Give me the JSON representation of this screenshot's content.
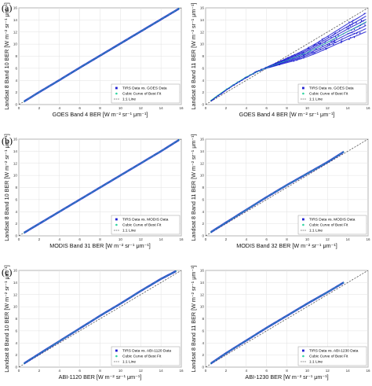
{
  "panel_labels": [
    "(a)",
    "(b)",
    "(c)"
  ],
  "legend_common": {
    "best_fit": "Cubic Curve of Best Fit",
    "one_to_one": "1:1 Line"
  },
  "colors": {
    "data": "#1f1fd1",
    "best_fit": "#2fd3a0",
    "one_to_one": "#555555"
  },
  "chart_data": [
    {
      "type": "scatter",
      "panel": "(a)",
      "xlabel": "GOES Band 4 BER [W m⁻² sr⁻¹ μm⁻¹]",
      "ylabel": "Landsat 8 Band 10 BER [W m⁻² sr⁻¹ μm⁻¹]",
      "xlim": [
        0,
        16
      ],
      "ylim": [
        0,
        16
      ],
      "grid": true,
      "legend_position": "bottom-right",
      "series": [
        {
          "name": "TIRS Data vs. GOES Data",
          "x": [
            0.5,
            2,
            4,
            6,
            8,
            10,
            12,
            14,
            15.8
          ],
          "y": [
            0.5,
            2.05,
            4.05,
            6.1,
            8.1,
            10.1,
            12.1,
            14.1,
            15.9
          ]
        },
        {
          "name": "Cubic Curve of Best Fit",
          "x": [
            0.5,
            2,
            4,
            6,
            8,
            10,
            12,
            14,
            15.8
          ],
          "y": [
            0.5,
            2.05,
            4.05,
            6.1,
            8.1,
            10.1,
            12.1,
            14.1,
            15.9
          ]
        },
        {
          "name": "1:1 Line",
          "x": [
            0,
            16
          ],
          "y": [
            0,
            16
          ]
        }
      ]
    },
    {
      "type": "scatter",
      "panel": "(a)",
      "xlabel": "GOES Band 4 BER [W m⁻² sr⁻¹ μm⁻¹]",
      "ylabel": "Landsat 8 Band 11 BER [W m⁻² sr⁻¹ μm⁻¹]",
      "xlim": [
        0,
        16
      ],
      "ylim": [
        0,
        16
      ],
      "grid": true,
      "legend_position": "bottom-right",
      "series": [
        {
          "name": "TIRS Data vs. GOES Data",
          "x": [
            0.5,
            1,
            2,
            3,
            4,
            5,
            6,
            7,
            8,
            9,
            10,
            11,
            12,
            13,
            14,
            15,
            15.8
          ],
          "y": [
            0.6,
            1.2,
            2.4,
            3.5,
            4.5,
            5.4,
            6.1,
            6.7,
            7.3,
            7.9,
            8.6,
            9.4,
            10.3,
            11.2,
            12.1,
            12.9,
            13.6
          ]
        },
        {
          "name": "Cubic Curve of Best Fit",
          "x": [
            0.5,
            2,
            4,
            6,
            8,
            10,
            12,
            14,
            15.8
          ],
          "y": [
            0.7,
            2.5,
            4.6,
            6.1,
            7.3,
            8.6,
            10.3,
            12.1,
            13.7
          ]
        },
        {
          "name": "1:1 Line",
          "x": [
            0,
            16
          ],
          "y": [
            0,
            16
          ]
        }
      ]
    },
    {
      "type": "scatter",
      "panel": "(b)",
      "xlabel": "MODIS Band 31 BER [W m⁻² sr⁻¹ μm⁻¹]",
      "ylabel": "Landsat 8 Band 10 BER [W m⁻² sr⁻¹ μm⁻¹]",
      "xlim": [
        0,
        16
      ],
      "ylim": [
        0,
        16
      ],
      "grid": true,
      "legend_position": "bottom-right",
      "series": [
        {
          "name": "TIRS Data vs. MODIS Data",
          "x": [
            0.5,
            2,
            4,
            6,
            8,
            10,
            12,
            14,
            15.8
          ],
          "y": [
            0.5,
            2.0,
            4.0,
            6.0,
            8.0,
            10.0,
            12.0,
            14.0,
            15.9
          ]
        },
        {
          "name": "Cubic Curve of Best Fit",
          "x": [
            0.5,
            2,
            4,
            6,
            8,
            10,
            12,
            14,
            15.8
          ],
          "y": [
            0.5,
            2.0,
            4.0,
            6.0,
            8.0,
            10.0,
            12.0,
            14.0,
            15.9
          ]
        },
        {
          "name": "1:1 Line",
          "x": [
            0,
            16
          ],
          "y": [
            0,
            16
          ]
        }
      ]
    },
    {
      "type": "scatter",
      "panel": "(b)",
      "xlabel": "MODIS Band 32 BER [W m⁻² sr⁻¹ μm⁻¹]",
      "ylabel": "Landsat 8 Band 11 BER [W m⁻² sr⁻¹ μm⁻¹]",
      "xlim": [
        0,
        16
      ],
      "ylim": [
        0,
        16
      ],
      "grid": true,
      "legend_position": "bottom-right",
      "series": [
        {
          "name": "TIRS Data vs. MODIS Data",
          "x": [
            0.5,
            2,
            4,
            6,
            8,
            10,
            12,
            13.6
          ],
          "y": [
            0.6,
            2.2,
            4.3,
            6.4,
            8.4,
            10.3,
            12.2,
            13.9
          ]
        },
        {
          "name": "Cubic Curve of Best Fit",
          "x": [
            0.5,
            2,
            4,
            6,
            8,
            10,
            12,
            13.6
          ],
          "y": [
            0.6,
            2.2,
            4.3,
            6.4,
            8.4,
            10.3,
            12.2,
            13.9
          ]
        },
        {
          "name": "1:1 Line",
          "x": [
            0,
            16
          ],
          "y": [
            0,
            16
          ]
        }
      ]
    },
    {
      "type": "scatter",
      "panel": "(c)",
      "xlabel": "ABI-1120 BER [W m⁻² sr⁻¹ μm⁻¹]",
      "ylabel": "Landsat 8 Band 10 BER [W m⁻² sr⁻¹ μm⁻¹]",
      "xlim": [
        0,
        16
      ],
      "ylim": [
        0,
        16
      ],
      "grid": true,
      "legend_position": "bottom-right",
      "series": [
        {
          "name": "TIRS Data vs. ABI-1120 Data",
          "x": [
            0.5,
            2,
            4,
            6,
            8,
            10,
            12,
            14,
            15.5
          ],
          "y": [
            0.6,
            2.2,
            4.3,
            6.4,
            8.5,
            10.5,
            12.6,
            14.6,
            15.9
          ]
        },
        {
          "name": "Cubic Curve of Best Fit",
          "x": [
            0.5,
            2,
            4,
            6,
            8,
            10,
            12,
            14,
            15.5
          ],
          "y": [
            0.6,
            2.2,
            4.3,
            6.4,
            8.5,
            10.5,
            12.6,
            14.6,
            15.9
          ]
        },
        {
          "name": "1:1 Line",
          "x": [
            0,
            16
          ],
          "y": [
            0,
            16
          ]
        }
      ]
    },
    {
      "type": "scatter",
      "panel": "(c)",
      "xlabel": "ABI-1230 BER [W m⁻² sr⁻¹ μm⁻¹]",
      "ylabel": "Landsat 8 Band 11 BER [W m⁻² sr⁻¹ μm⁻¹]",
      "xlim": [
        0,
        16
      ],
      "ylim": [
        0,
        16
      ],
      "grid": true,
      "legend_position": "bottom-right",
      "series": [
        {
          "name": "TIRS Data vs. ABI-1230 Data",
          "x": [
            0.5,
            2,
            4,
            6,
            8,
            10,
            12,
            13.6
          ],
          "y": [
            0.6,
            2.3,
            4.4,
            6.5,
            8.5,
            10.5,
            12.4,
            14.0
          ]
        },
        {
          "name": "Cubic Curve of Best Fit",
          "x": [
            0.5,
            2,
            4,
            6,
            8,
            10,
            12,
            13.6
          ],
          "y": [
            0.6,
            2.3,
            4.4,
            6.5,
            8.5,
            10.5,
            12.4,
            14.0
          ]
        },
        {
          "name": "1:1 Line",
          "x": [
            0,
            16
          ],
          "y": [
            0,
            16
          ]
        }
      ]
    }
  ]
}
